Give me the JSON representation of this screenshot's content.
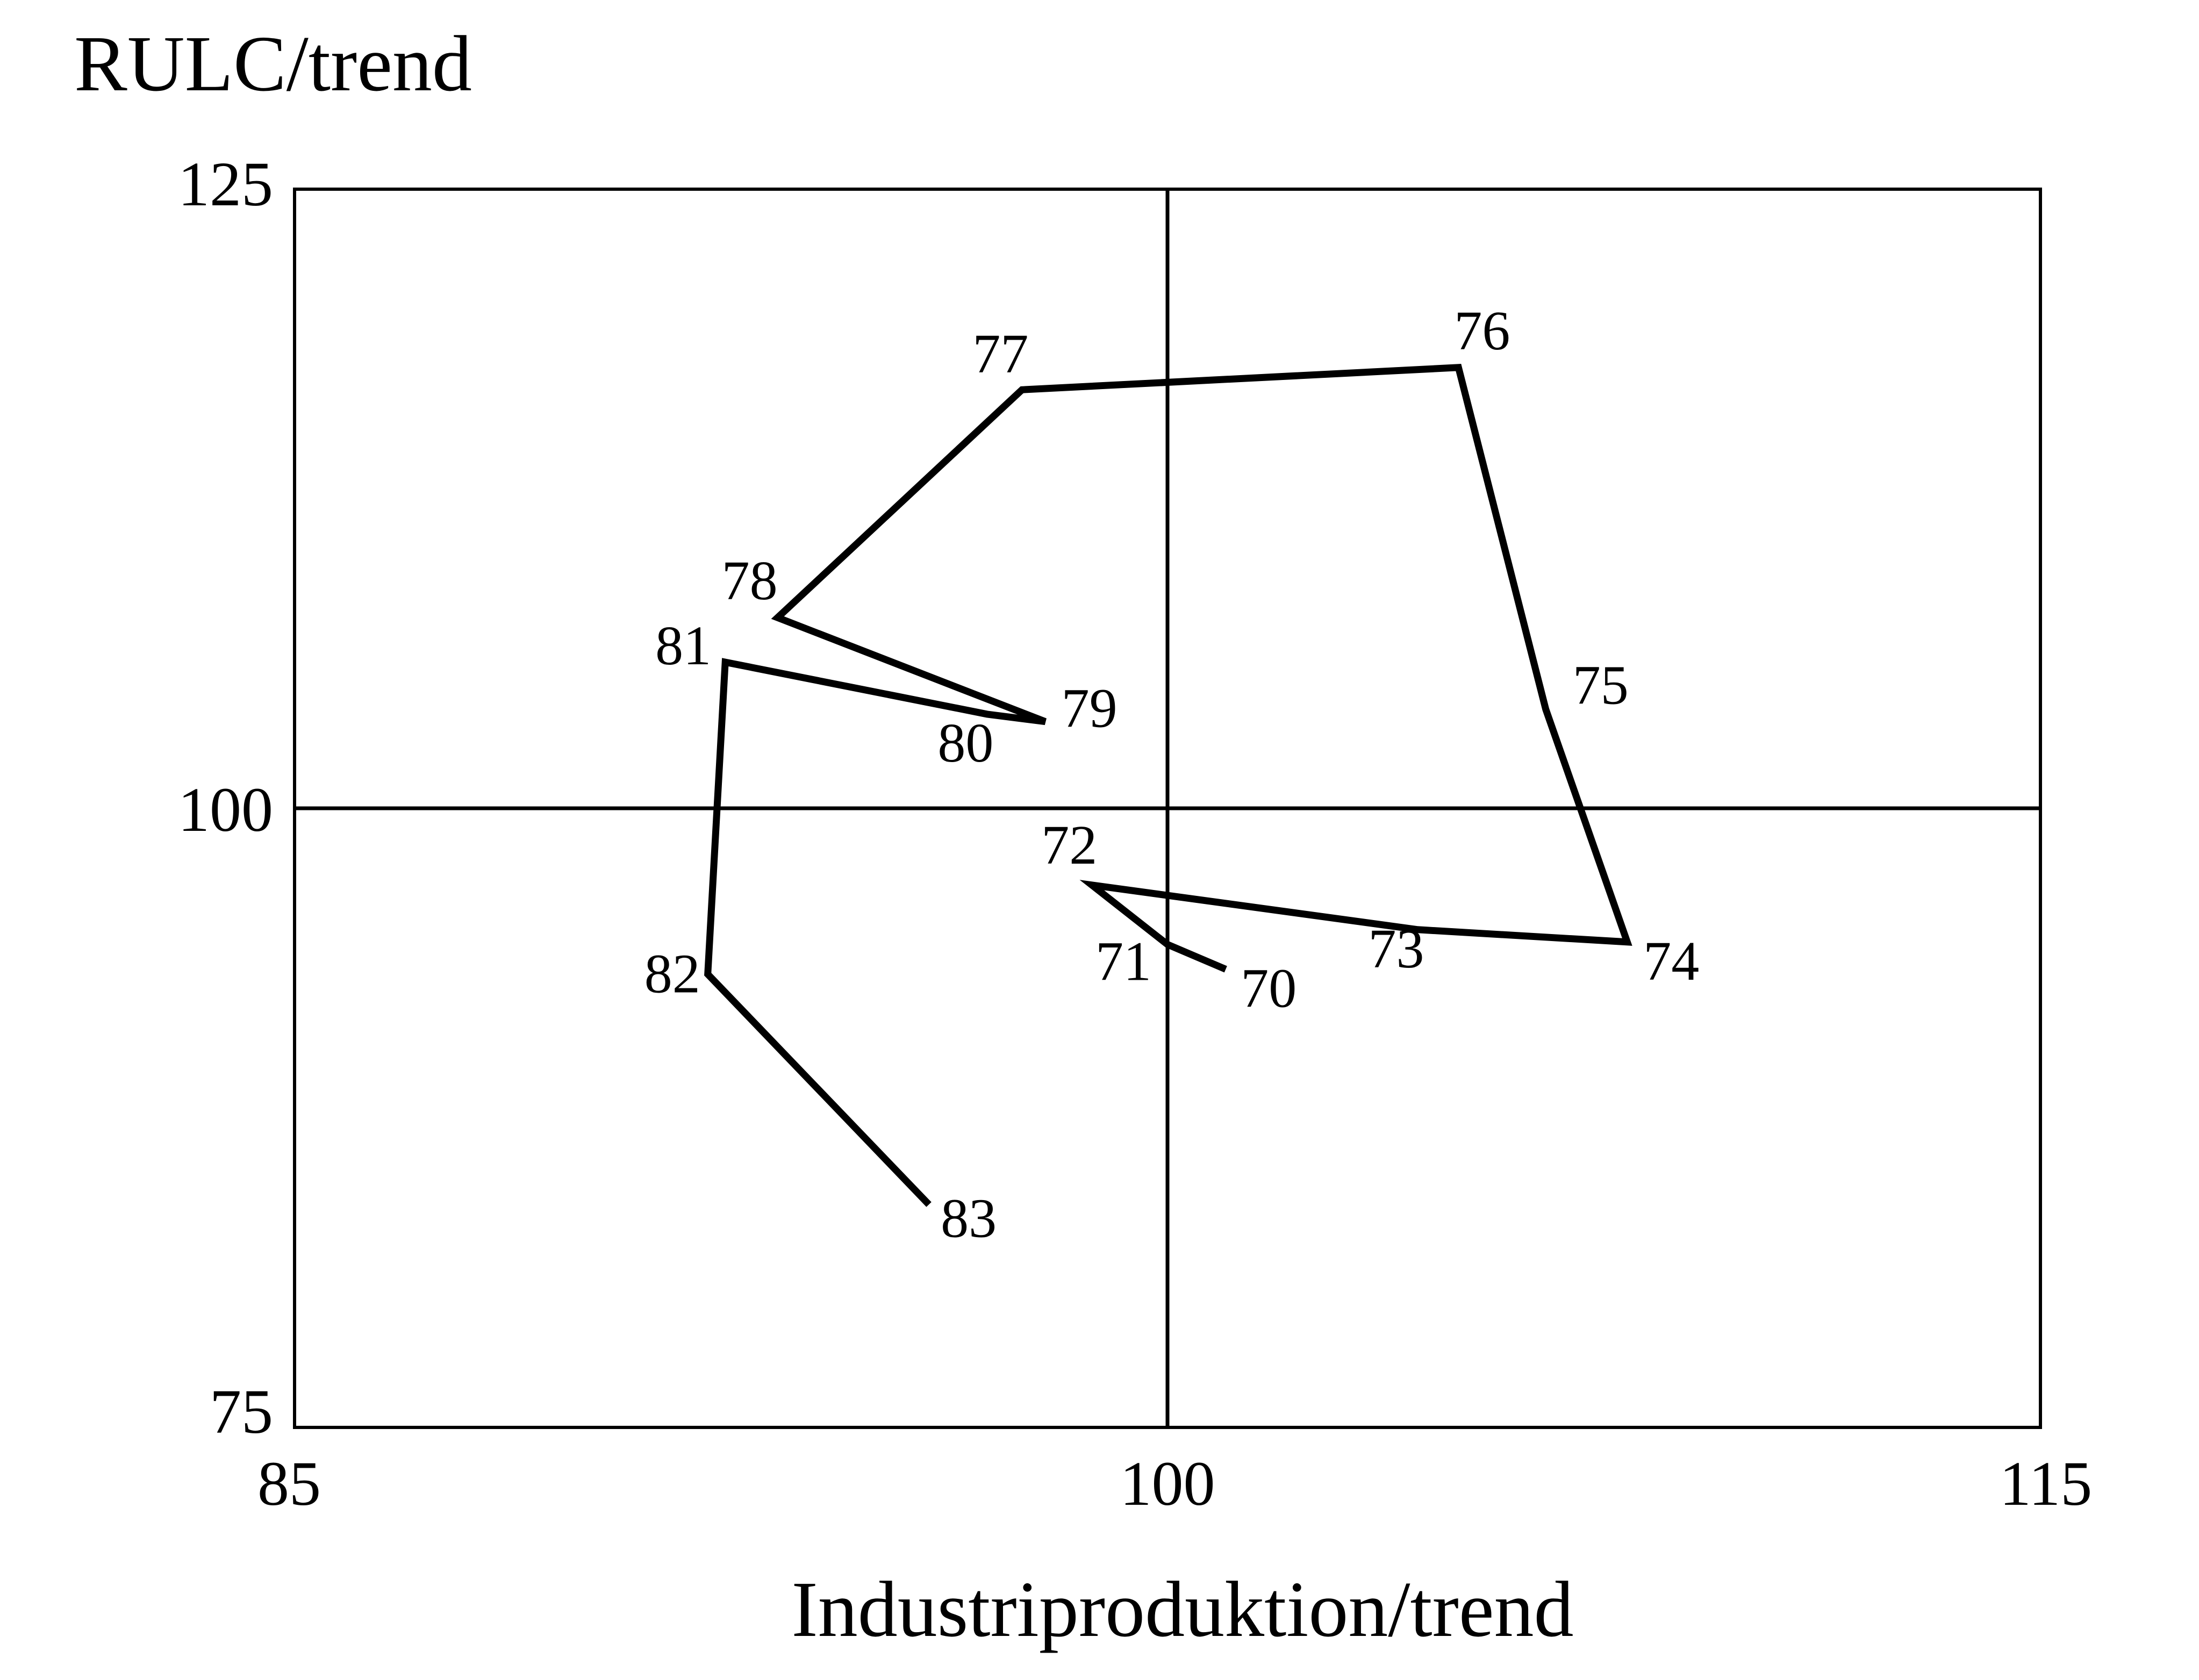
{
  "chart_data": {
    "type": "line",
    "title": "",
    "xlabel": "Industriproduktion/trend",
    "ylabel": "RULC/trend",
    "xlim": [
      85,
      115
    ],
    "ylim": [
      75,
      125
    ],
    "x_ticks": [
      "85",
      "100",
      "115"
    ],
    "y_ticks": [
      "125",
      "100",
      "75"
    ],
    "reference_lines": {
      "x": 100,
      "y": 100
    },
    "grid": false,
    "legend": "none",
    "line_color": "#000000",
    "points": [
      {
        "label": "70",
        "x": 101.0,
        "y": 93.5
      },
      {
        "label": "71",
        "x": 100.0,
        "y": 94.5
      },
      {
        "label": "72",
        "x": 98.7,
        "y": 96.9
      },
      {
        "label": "73",
        "x": 104.3,
        "y": 95.1
      },
      {
        "label": "74",
        "x": 107.9,
        "y": 94.6
      },
      {
        "label": "75",
        "x": 106.5,
        "y": 104.0
      },
      {
        "label": "76",
        "x": 105.0,
        "y": 117.8
      },
      {
        "label": "77",
        "x": 97.5,
        "y": 116.9
      },
      {
        "label": "78",
        "x": 93.3,
        "y": 107.7
      },
      {
        "label": "79",
        "x": 97.9,
        "y": 103.5
      },
      {
        "label": "80",
        "x": 96.9,
        "y": 103.8
      },
      {
        "label": "81",
        "x": 92.4,
        "y": 105.9
      },
      {
        "label": "82",
        "x": 92.1,
        "y": 93.3
      },
      {
        "label": "83",
        "x": 95.9,
        "y": 84.0
      }
    ]
  }
}
